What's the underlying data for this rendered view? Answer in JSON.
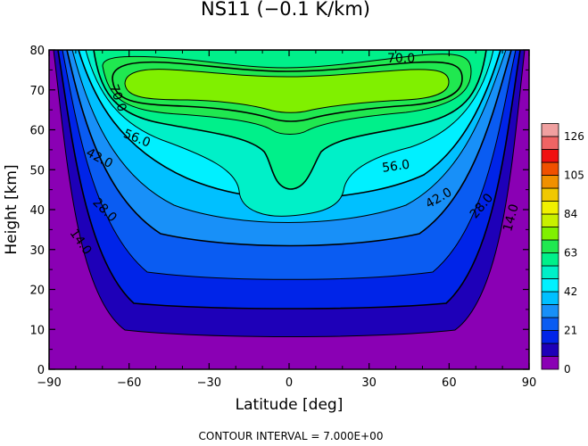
{
  "chart_data": {
    "type": "contour",
    "title": "NS11 (−0.1 K/km)",
    "xlabel": "Latitude [deg]",
    "ylabel": "Height [km]",
    "xlim": [
      -90,
      90
    ],
    "ylim": [
      0,
      80
    ],
    "xticks": [
      -90,
      -60,
      -30,
      0,
      30,
      60,
      90
    ],
    "xtick_labels": [
      "−90",
      "−60",
      "−30",
      "0",
      "30",
      "60",
      "90"
    ],
    "yticks": [
      0,
      10,
      20,
      30,
      40,
      50,
      60,
      70,
      80
    ],
    "contour_interval": 7.0,
    "contour_levels": [
      7,
      14,
      21,
      28,
      35,
      42,
      49,
      56,
      63,
      70
    ],
    "contour_labels": [
      {
        "text": "70.0",
        "lat": 42,
        "height": 78,
        "rotate": 0
      },
      {
        "text": "70.0",
        "lat": -64,
        "height": 68,
        "rotate": 70
      },
      {
        "text": "56.0",
        "lat": -57,
        "height": 58,
        "rotate": 22
      },
      {
        "text": "42.0",
        "lat": -71,
        "height": 53,
        "rotate": 28
      },
      {
        "text": "28.0",
        "lat": -69,
        "height": 40,
        "rotate": 45
      },
      {
        "text": "14.0",
        "lat": -78,
        "height": 32,
        "rotate": 55
      },
      {
        "text": "56.0",
        "lat": 40,
        "height": 51,
        "rotate": -8
      },
      {
        "text": "42.0",
        "lat": 56,
        "height": 43,
        "rotate": -30
      },
      {
        "text": "28.0",
        "lat": 72,
        "height": 41,
        "rotate": -50
      },
      {
        "text": "14.0",
        "lat": 83,
        "height": 38,
        "rotate": -75
      }
    ],
    "colorbar": {
      "tick_labels": [
        "0",
        "21",
        "42",
        "63",
        "84",
        "105",
        "126"
      ],
      "colors": [
        "#8a00b4",
        "#1e00b8",
        "#0024e8",
        "#0a5cf2",
        "#1890f8",
        "#00c0ff",
        "#00f0ff",
        "#00f0c8",
        "#00f08a",
        "#20e850",
        "#80f000",
        "#c8f000",
        "#f0f000",
        "#f0c800",
        "#f09000",
        "#f05000",
        "#f01010",
        "#f06464",
        "#f0a0a0"
      ]
    },
    "footer": "CONTOUR INTERVAL = 7.000E+00"
  }
}
